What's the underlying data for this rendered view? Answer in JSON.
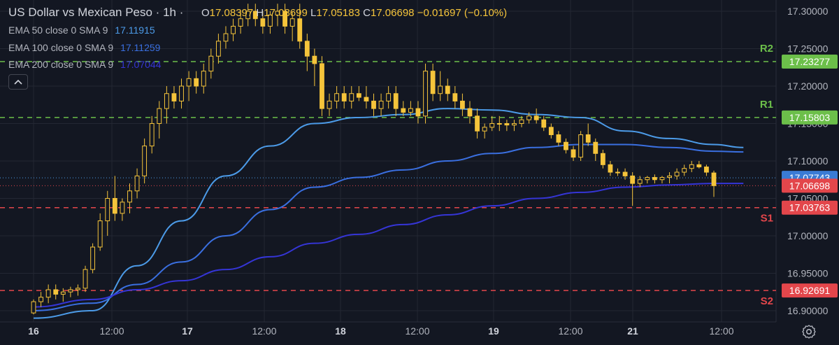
{
  "header": {
    "title": "US Dollar vs Mexican Peso · 1h ·",
    "ohlc": {
      "o_label": "O",
      "o": "17.08397",
      "h_label": "H",
      "h": "17.08699",
      "l_label": "L",
      "l": "17.05183",
      "c_label": "C",
      "c": "17.06698",
      "change": "−0.01697 (−0.10%)"
    }
  },
  "indicators": [
    {
      "label": "EMA 50 close 0 SMA 9",
      "value": "17.11915",
      "color": "#4c9be8"
    },
    {
      "label": "EMA 100 close 0 SMA 9",
      "value": "17.11259",
      "color": "#3a6fe0"
    },
    {
      "label": "EMA 200 close 0 SMA 9",
      "value": "17.07044",
      "color": "#3535d6"
    }
  ],
  "collapse_icon": "chevron-up-icon",
  "settings_icon": "gear-icon",
  "colors": {
    "background": "#131722",
    "candle": "#f5c43b",
    "resistance": "#6cbf4a",
    "support": "#e3464b",
    "price_label": "#e3464b"
  },
  "chart_data": {
    "type": "candlestick",
    "ylim": [
      16.885,
      17.315
    ],
    "y_ticks": [
      "17.30000",
      "17.25000",
      "17.20000",
      "17.15000",
      "17.10000",
      "17.05000",
      "17.00000",
      "16.95000",
      "16.90000"
    ],
    "x_ticks": [
      "16",
      "12:00",
      "17",
      "12:00",
      "18",
      "12:00",
      "19",
      "12:00",
      "21",
      "12:00"
    ],
    "levels": [
      {
        "name": "R2",
        "value": 17.23277,
        "label": "17.23277",
        "kind": "resistance"
      },
      {
        "name": "R1",
        "value": 17.15803,
        "label": "17.15803",
        "kind": "resistance"
      },
      {
        "name": "S1",
        "value": 17.03763,
        "label": "17.03763",
        "kind": "support"
      },
      {
        "name": "S2",
        "value": 16.92691,
        "label": "16.92691",
        "kind": "support"
      }
    ],
    "ema_label": {
      "value": 17.07743,
      "label": "17.07743"
    },
    "last_price": {
      "value": 17.06698,
      "label": "17.06698"
    },
    "candles": [
      [
        16.897,
        16.915,
        16.895,
        16.912
      ],
      [
        16.912,
        16.925,
        16.905,
        16.918
      ],
      [
        16.918,
        16.935,
        16.91,
        16.928
      ],
      [
        16.928,
        16.935,
        16.915,
        16.922
      ],
      [
        16.922,
        16.93,
        16.912,
        16.925
      ],
      [
        16.925,
        16.932,
        16.918,
        16.928
      ],
      [
        16.928,
        16.935,
        16.92,
        16.93
      ],
      [
        16.93,
        16.96,
        16.925,
        16.955
      ],
      [
        16.955,
        16.99,
        16.95,
        16.985
      ],
      [
        16.985,
        17.03,
        16.98,
        17.02
      ],
      [
        17.02,
        17.06,
        17.0,
        17.05
      ],
      [
        17.05,
        17.08,
        17.02,
        17.03
      ],
      [
        17.03,
        17.05,
        17.02,
        17.045
      ],
      [
        17.045,
        17.07,
        17.03,
        17.06
      ],
      [
        17.06,
        17.09,
        17.05,
        17.08
      ],
      [
        17.08,
        17.13,
        17.07,
        17.12
      ],
      [
        17.12,
        17.16,
        17.11,
        17.15
      ],
      [
        17.15,
        17.18,
        17.13,
        17.17
      ],
      [
        17.17,
        17.2,
        17.15,
        17.19
      ],
      [
        17.19,
        17.2,
        17.17,
        17.18
      ],
      [
        17.18,
        17.21,
        17.17,
        17.2
      ],
      [
        17.2,
        17.22,
        17.18,
        17.21
      ],
      [
        17.21,
        17.22,
        17.19,
        17.2
      ],
      [
        17.2,
        17.23,
        17.19,
        17.22
      ],
      [
        17.22,
        17.25,
        17.21,
        17.24
      ],
      [
        17.24,
        17.27,
        17.23,
        17.26
      ],
      [
        17.26,
        17.28,
        17.25,
        17.27
      ],
      [
        17.27,
        17.29,
        17.26,
        17.28
      ],
      [
        17.28,
        17.3,
        17.27,
        17.29
      ],
      [
        17.29,
        17.31,
        17.28,
        17.3
      ],
      [
        17.3,
        17.31,
        17.28,
        17.29
      ],
      [
        17.29,
        17.3,
        17.27,
        17.28
      ],
      [
        17.28,
        17.3,
        17.27,
        17.295
      ],
      [
        17.295,
        17.31,
        17.28,
        17.3
      ],
      [
        17.3,
        17.31,
        17.27,
        17.28
      ],
      [
        17.28,
        17.3,
        17.26,
        17.29
      ],
      [
        17.29,
        17.31,
        17.25,
        17.26
      ],
      [
        17.26,
        17.27,
        17.22,
        17.24
      ],
      [
        17.24,
        17.25,
        17.2,
        17.23
      ],
      [
        17.23,
        17.24,
        17.16,
        17.17
      ],
      [
        17.17,
        17.19,
        17.16,
        17.18
      ],
      [
        17.18,
        17.2,
        17.17,
        17.19
      ],
      [
        17.19,
        17.2,
        17.17,
        17.18
      ],
      [
        17.18,
        17.2,
        17.17,
        17.19
      ],
      [
        17.19,
        17.2,
        17.18,
        17.185
      ],
      [
        17.185,
        17.2,
        17.17,
        17.18
      ],
      [
        17.18,
        17.19,
        17.16,
        17.17
      ],
      [
        17.17,
        17.19,
        17.16,
        17.18
      ],
      [
        17.18,
        17.2,
        17.17,
        17.19
      ],
      [
        17.19,
        17.2,
        17.16,
        17.17
      ],
      [
        17.17,
        17.18,
        17.16,
        17.165
      ],
      [
        17.165,
        17.18,
        17.16,
        17.17
      ],
      [
        17.17,
        17.18,
        17.15,
        17.16
      ],
      [
        17.16,
        17.23,
        17.15,
        17.22
      ],
      [
        17.22,
        17.23,
        17.18,
        17.19
      ],
      [
        17.19,
        17.22,
        17.18,
        17.2
      ],
      [
        17.2,
        17.21,
        17.18,
        17.19
      ],
      [
        17.19,
        17.2,
        17.17,
        17.18
      ],
      [
        17.18,
        17.19,
        17.16,
        17.17
      ],
      [
        17.17,
        17.18,
        17.15,
        17.16
      ],
      [
        17.16,
        17.17,
        17.13,
        17.14
      ],
      [
        17.14,
        17.15,
        17.13,
        17.145
      ],
      [
        17.145,
        17.16,
        17.14,
        17.15
      ],
      [
        17.15,
        17.16,
        17.14,
        17.15
      ],
      [
        17.15,
        17.155,
        17.14,
        17.148
      ],
      [
        17.148,
        17.155,
        17.14,
        17.15
      ],
      [
        17.15,
        17.16,
        17.145,
        17.155
      ],
      [
        17.155,
        17.165,
        17.15,
        17.16
      ],
      [
        17.16,
        17.17,
        17.15,
        17.155
      ],
      [
        17.155,
        17.16,
        17.14,
        17.145
      ],
      [
        17.145,
        17.15,
        17.13,
        17.135
      ],
      [
        17.135,
        17.14,
        17.12,
        17.125
      ],
      [
        17.125,
        17.13,
        17.11,
        17.115
      ],
      [
        17.115,
        17.12,
        17.1,
        17.105
      ],
      [
        17.105,
        17.14,
        17.1,
        17.135
      ],
      [
        17.135,
        17.15,
        17.12,
        17.125
      ],
      [
        17.125,
        17.13,
        17.1,
        17.11
      ],
      [
        17.11,
        17.115,
        17.09,
        17.095
      ],
      [
        17.095,
        17.1,
        17.08,
        17.085
      ],
      [
        17.085,
        17.09,
        17.08,
        17.085
      ],
      [
        17.085,
        17.09,
        17.075,
        17.08
      ],
      [
        17.08,
        17.085,
        17.04,
        17.07
      ],
      [
        17.07,
        17.08,
        17.065,
        17.075
      ],
      [
        17.075,
        17.08,
        17.07,
        17.078
      ],
      [
        17.078,
        17.082,
        17.07,
        17.075
      ],
      [
        17.075,
        17.08,
        17.07,
        17.078
      ],
      [
        17.078,
        17.085,
        17.07,
        17.08
      ],
      [
        17.08,
        17.09,
        17.075,
        17.085
      ],
      [
        17.085,
        17.095,
        17.08,
        17.09
      ],
      [
        17.09,
        17.1,
        17.085,
        17.095
      ],
      [
        17.095,
        17.1,
        17.09,
        17.092
      ],
      [
        17.092,
        17.095,
        17.08,
        17.085
      ],
      [
        17.084,
        17.087,
        17.052,
        17.067
      ]
    ],
    "ema_series": {
      "ema50": {
        "x": [
          0,
          8,
          14,
          20,
          26,
          32,
          38,
          44,
          50,
          56,
          62,
          68,
          74,
          80,
          86,
          92,
          96
        ],
        "y": [
          16.89,
          16.9,
          16.96,
          17.02,
          17.08,
          17.12,
          17.15,
          17.158,
          17.162,
          17.17,
          17.168,
          17.162,
          17.158,
          17.14,
          17.13,
          17.122,
          17.118
        ]
      },
      "ema100": {
        "x": [
          0,
          8,
          14,
          20,
          26,
          32,
          38,
          44,
          50,
          56,
          62,
          68,
          74,
          80,
          86,
          92,
          96
        ],
        "y": [
          16.9,
          16.91,
          16.935,
          16.965,
          17.0,
          17.035,
          17.065,
          17.078,
          17.088,
          17.1,
          17.11,
          17.118,
          17.122,
          17.122,
          17.118,
          17.113,
          17.112
        ]
      },
      "ema200": {
        "x": [
          0,
          8,
          14,
          20,
          26,
          32,
          38,
          44,
          50,
          56,
          62,
          68,
          74,
          80,
          86,
          92,
          96
        ],
        "y": [
          16.905,
          16.915,
          16.928,
          16.94,
          16.955,
          16.972,
          16.99,
          17.002,
          17.015,
          17.028,
          17.04,
          17.05,
          17.058,
          17.065,
          17.068,
          17.07,
          17.07
        ]
      }
    }
  }
}
